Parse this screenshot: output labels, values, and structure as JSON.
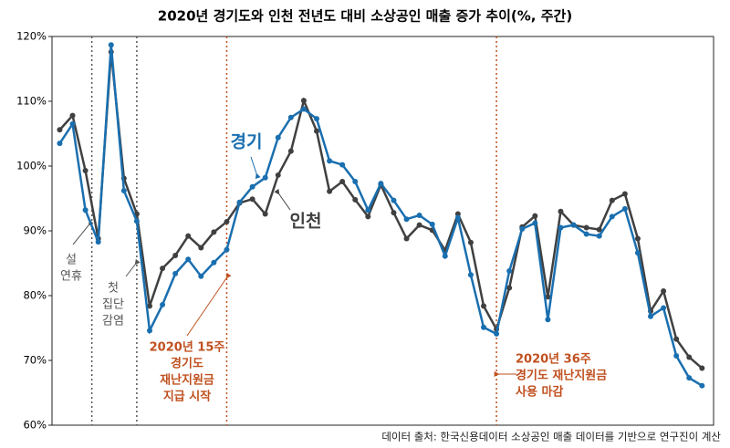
{
  "chart_data": {
    "type": "line",
    "title": "2020년 경기도와 인천 전년도 대비 소상공인 매출 증가 추이(%, 주간)",
    "source": "데이터 출처: 한국신용데이터 소상공인 매출 데이터를 기반으로 연구진이 계산",
    "x": [
      2,
      3,
      4,
      5,
      6,
      7,
      8,
      9,
      10,
      11,
      12,
      13,
      14,
      15,
      16,
      17,
      18,
      19,
      20,
      21,
      22,
      23,
      24,
      25,
      26,
      27,
      28,
      29,
      30,
      31,
      32,
      33,
      34,
      35,
      36,
      37,
      38,
      39,
      40,
      41,
      42,
      43,
      44,
      45,
      46,
      47,
      48,
      49,
      50,
      51,
      52
    ],
    "xlim": [
      1.4,
      52.9
    ],
    "ylim": [
      60,
      120
    ],
    "yticks": [
      {
        "value": 60,
        "label": "60%"
      },
      {
        "value": 70,
        "label": "70%"
      },
      {
        "value": 80,
        "label": "80%"
      },
      {
        "value": 90,
        "label": "90%"
      },
      {
        "value": 100,
        "label": "100%"
      },
      {
        "value": 110,
        "label": "110%"
      },
      {
        "value": 120,
        "label": "120%"
      }
    ],
    "series": [
      {
        "name": "인천",
        "color": "#404040",
        "values": [
          105.6,
          107.8,
          99.3,
          88.8,
          117.6,
          98.1,
          92.6,
          78.4,
          84.2,
          86.2,
          89.2,
          87.4,
          89.8,
          91.4,
          94.3,
          94.9,
          92.6,
          98.6,
          102.3,
          110.1,
          105.4,
          96.1,
          97.6,
          94.8,
          92.2,
          97.1,
          92.8,
          88.8,
          90.9,
          90.1,
          87.0,
          92.6,
          88.2,
          78.4,
          74.8,
          81.2,
          90.6,
          92.3,
          79.8,
          93.0,
          90.9,
          90.5,
          90.2,
          94.7,
          95.7,
          88.8,
          77.6,
          80.7,
          73.3,
          70.5,
          68.8
        ]
      },
      {
        "name": "경기",
        "color": "#1a6faf",
        "values": [
          103.5,
          106.5,
          93.2,
          88.3,
          118.7,
          96.2,
          91.5,
          74.6,
          78.6,
          83.4,
          85.6,
          83.0,
          85.1,
          87.1,
          94.4,
          96.8,
          98.2,
          104.4,
          107.5,
          108.8,
          107.3,
          100.8,
          100.2,
          97.6,
          93.2,
          97.3,
          94.7,
          91.8,
          92.4,
          91.0,
          86.1,
          92.0,
          83.2,
          75.1,
          74.1,
          83.8,
          90.3,
          91.2,
          76.3,
          90.5,
          90.9,
          89.5,
          89.2,
          92.2,
          93.4,
          86.6,
          76.8,
          78.1,
          70.7,
          67.3,
          66.1
        ]
      }
    ],
    "markers": [
      {
        "x": 4.5,
        "color": "#555555"
      },
      {
        "x": 8,
        "color": "#555555"
      },
      {
        "x": 15,
        "color": "#c0501f"
      },
      {
        "x": 36,
        "color": "#c0501f"
      }
    ],
    "annotations": [
      {
        "lines": [
          "설",
          "연휴"
        ],
        "color": "#555555"
      },
      {
        "lines": [
          "첫",
          "집단",
          "감염"
        ],
        "color": "#555555"
      },
      {
        "lines": [
          "2020년 15주",
          "경기도",
          "재난지원금",
          "지급 시작"
        ],
        "color": "#c0501f"
      },
      {
        "lines": [
          "2020년 36주",
          "경기도 재난지원금",
          "사용 마감"
        ],
        "color": "#c0501f"
      }
    ]
  }
}
